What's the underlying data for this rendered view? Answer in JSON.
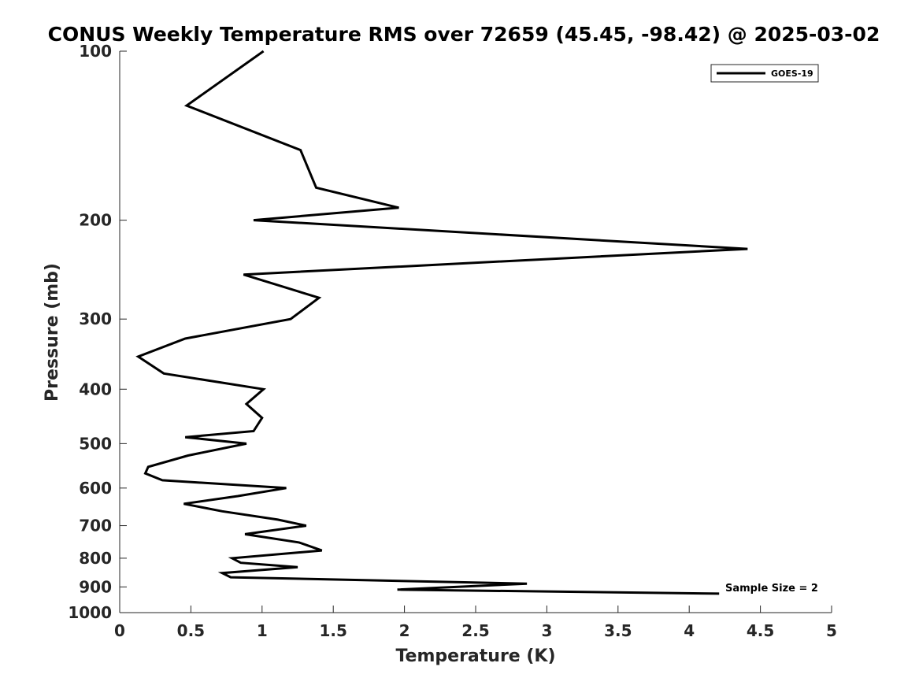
{
  "chart_data": {
    "type": "line",
    "title": "CONUS Weekly Temperature RMS over 72659 (45.45, -98.42) @ 2025-03-02",
    "xlabel": "Temperature (K)",
    "ylabel": "Pressure (mb)",
    "xlim": [
      0,
      5
    ],
    "ylim": [
      100,
      1000
    ],
    "y_scale": "log",
    "y_reversed": true,
    "grid": false,
    "x_ticks": [
      "0",
      "0.5",
      "1",
      "1.5",
      "2",
      "2.5",
      "3",
      "3.5",
      "4",
      "4.5",
      "5"
    ],
    "x_tick_values": [
      0,
      0.5,
      1,
      1.5,
      2,
      2.5,
      3,
      3.5,
      4,
      4.5,
      5
    ],
    "y_ticks": [
      "100",
      "200",
      "300",
      "400",
      "500",
      "600",
      "700",
      "800",
      "900",
      "1000"
    ],
    "y_tick_values": [
      100,
      200,
      300,
      400,
      500,
      600,
      700,
      800,
      900,
      1000
    ],
    "legend": {
      "placement": "top-right",
      "entries": [
        "GOES-19"
      ]
    },
    "annotations": [
      {
        "text": "Sample Size = 2",
        "placement": "bottom-right"
      }
    ],
    "series": [
      {
        "name": "GOES-19",
        "color": "#000000",
        "points": [
          [
            1.01,
            100
          ],
          [
            0.47,
            125
          ],
          [
            1.27,
            150
          ],
          [
            1.38,
            175
          ],
          [
            1.96,
            190
          ],
          [
            0.94,
            200
          ],
          [
            4.41,
            225
          ],
          [
            0.87,
            250
          ],
          [
            1.4,
            275
          ],
          [
            1.2,
            300
          ],
          [
            0.46,
            325
          ],
          [
            0.13,
            350
          ],
          [
            0.31,
            375
          ],
          [
            1.01,
            400
          ],
          [
            0.89,
            425
          ],
          [
            1.0,
            450
          ],
          [
            0.94,
            475
          ],
          [
            0.46,
            487
          ],
          [
            0.89,
            500
          ],
          [
            0.48,
            525
          ],
          [
            0.2,
            550
          ],
          [
            0.18,
            565
          ],
          [
            0.3,
            581
          ],
          [
            1.17,
            600
          ],
          [
            0.83,
            620
          ],
          [
            0.45,
            640
          ],
          [
            0.72,
            660
          ],
          [
            1.11,
            683
          ],
          [
            1.31,
            700
          ],
          [
            0.88,
            725
          ],
          [
            1.26,
            750
          ],
          [
            1.42,
            775
          ],
          [
            0.79,
            800
          ],
          [
            0.85,
            815
          ],
          [
            1.25,
            830
          ],
          [
            0.72,
            850
          ],
          [
            0.78,
            865
          ],
          [
            2.86,
            888
          ],
          [
            1.95,
            910
          ],
          [
            4.21,
            925
          ]
        ]
      }
    ]
  }
}
